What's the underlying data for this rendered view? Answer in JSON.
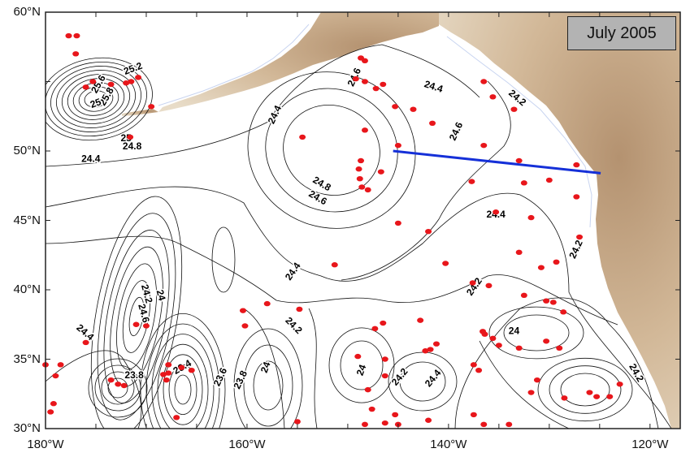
{
  "figure": {
    "date_label": "July 2005"
  },
  "axes": {
    "lon_range": [
      -180,
      -117
    ],
    "lat_range": [
      30,
      60
    ],
    "lat_ticks": [
      {
        "value": 60,
        "label": "60°N"
      },
      {
        "value": 50,
        "label": "50°N"
      },
      {
        "value": 45,
        "label": "45°N"
      },
      {
        "value": 40,
        "label": "40°N"
      },
      {
        "value": 35,
        "label": "35°N"
      },
      {
        "value": 30,
        "label": "30°N"
      }
    ],
    "lon_ticks": [
      {
        "value": -180,
        "label": "180°W"
      },
      {
        "value": -160,
        "label": "160°W"
      },
      {
        "value": -140,
        "label": "140°W"
      },
      {
        "value": -120,
        "label": "120°W"
      }
    ]
  },
  "colors": {
    "land_low": "#e8dcc8",
    "land_mid": "#d2b898",
    "land_high": "#b49270",
    "contour": "#111111",
    "float": "#e8161b",
    "section_line": "#1530d8",
    "coast_shelf": "#c8d4f0"
  },
  "contour_labels": [
    {
      "text": "24.6",
      "lon": -149.3,
      "lat": 55.3,
      "rot": -65
    },
    {
      "text": "24.4",
      "lon": -141.5,
      "lat": 54.6,
      "rot": 18
    },
    {
      "text": "24.2",
      "lon": -133.2,
      "lat": 53.8,
      "rot": 40
    },
    {
      "text": "24.4",
      "lon": -157.2,
      "lat": 52.6,
      "rot": -65
    },
    {
      "text": "24.6",
      "lon": -139.2,
      "lat": 51.4,
      "rot": -65
    },
    {
      "text": "24.8",
      "lon": -152.6,
      "lat": 47.6,
      "rot": 30
    },
    {
      "text": "24.6",
      "lon": -153.0,
      "lat": 46.6,
      "rot": 30
    },
    {
      "text": "24.4",
      "lon": -135.3,
      "lat": 45.4,
      "rot": 0
    },
    {
      "text": "24.2",
      "lon": -127.3,
      "lat": 42.9,
      "rot": -65
    },
    {
      "text": "24.4",
      "lon": -155.4,
      "lat": 41.3,
      "rot": -55
    },
    {
      "text": "24.2",
      "lon": -137.4,
      "lat": 40.2,
      "rot": -55
    },
    {
      "text": "24.2",
      "lon": -155.4,
      "lat": 37.4,
      "rot": 45
    },
    {
      "text": "24",
      "lon": -133.5,
      "lat": 37.0,
      "rot": 0
    },
    {
      "text": "24.2",
      "lon": -121.4,
      "lat": 34.0,
      "rot": 60
    },
    {
      "text": "24",
      "lon": -148.6,
      "lat": 34.2,
      "rot": -70
    },
    {
      "text": "24.2",
      "lon": -144.8,
      "lat": 33.7,
      "rot": -50
    },
    {
      "text": "24.4",
      "lon": -141.5,
      "lat": 33.6,
      "rot": -50
    },
    {
      "text": "24",
      "lon": -158.1,
      "lat": 34.4,
      "rot": -70
    },
    {
      "text": "23.8",
      "lon": -160.6,
      "lat": 33.5,
      "rot": -65
    },
    {
      "text": "23.6",
      "lon": -162.6,
      "lat": 33.7,
      "rot": -65
    },
    {
      "text": "23.8",
      "lon": -171.2,
      "lat": 33.8,
      "rot": 0
    },
    {
      "text": "23.4",
      "lon": -166.4,
      "lat": 34.4,
      "rot": -30
    },
    {
      "text": "24.4",
      "lon": -176.1,
      "lat": 36.9,
      "rot": 40
    },
    {
      "text": "24.6",
      "lon": -170.3,
      "lat": 38.3,
      "rot": 75
    },
    {
      "text": "24.2",
      "lon": -170.0,
      "lat": 39.7,
      "rot": 75
    },
    {
      "text": "24",
      "lon": -168.6,
      "lat": 39.6,
      "rot": 75
    },
    {
      "text": "24.4",
      "lon": -175.5,
      "lat": 49.4,
      "rot": 0
    },
    {
      "text": "24.8",
      "lon": -171.4,
      "lat": 50.3,
      "rot": 0
    },
    {
      "text": "25",
      "lon": -172.0,
      "lat": 50.9,
      "rot": 0
    },
    {
      "text": "25.6",
      "lon": -174.7,
      "lat": 54.8,
      "rot": -60
    },
    {
      "text": "25.8",
      "lon": -173.9,
      "lat": 53.9,
      "rot": -60
    },
    {
      "text": "25.2",
      "lon": -171.3,
      "lat": 55.9,
      "rot": -20
    },
    {
      "text": "25",
      "lon": -175.0,
      "lat": 53.4,
      "rot": -20
    }
  ],
  "section_line": [
    [
      -145.5,
      50.0
    ],
    [
      -124.9,
      48.4
    ]
  ],
  "float_positions": [
    [
      -177.7,
      58.3
    ],
    [
      -176.9,
      58.3
    ],
    [
      -177.0,
      57.0
    ],
    [
      -173.5,
      54.8
    ],
    [
      -172.0,
      54.9
    ],
    [
      -171.5,
      55.0
    ],
    [
      -170.8,
      55.3
    ],
    [
      -169.5,
      53.2
    ],
    [
      -171.6,
      51.0
    ],
    [
      -176.0,
      54.6
    ],
    [
      -175.3,
      55.0
    ],
    [
      -154.5,
      51.0
    ],
    [
      -148.7,
      56.7
    ],
    [
      -148.3,
      56.5
    ],
    [
      -149.2,
      55.2
    ],
    [
      -148.3,
      55.0
    ],
    [
      -147.2,
      54.5
    ],
    [
      -146.5,
      54.8
    ],
    [
      -145.3,
      53.2
    ],
    [
      -143.5,
      53.0
    ],
    [
      -141.6,
      52.0
    ],
    [
      -148.3,
      51.5
    ],
    [
      -145.0,
      50.4
    ],
    [
      -148.7,
      49.3
    ],
    [
      -148.9,
      48.7
    ],
    [
      -146.7,
      48.5
    ],
    [
      -148.8,
      48.0
    ],
    [
      -148.6,
      47.4
    ],
    [
      -148.0,
      47.2
    ],
    [
      -136.5,
      55.0
    ],
    [
      -135.6,
      53.9
    ],
    [
      -133.5,
      53.0
    ],
    [
      -136.5,
      50.4
    ],
    [
      -133.0,
      49.3
    ],
    [
      -132.5,
      47.7
    ],
    [
      -130.0,
      47.9
    ],
    [
      -127.3,
      49.0
    ],
    [
      -127.3,
      46.7
    ],
    [
      -137.7,
      47.8
    ],
    [
      -135.3,
      45.6
    ],
    [
      -131.8,
      45.2
    ],
    [
      -145.0,
      44.8
    ],
    [
      -142.0,
      44.2
    ],
    [
      -127.0,
      43.8
    ],
    [
      -133.0,
      42.7
    ],
    [
      -129.3,
      42.0
    ],
    [
      -130.8,
      41.6
    ],
    [
      -151.3,
      41.8
    ],
    [
      -140.3,
      41.9
    ],
    [
      -137.6,
      40.5
    ],
    [
      -136.0,
      40.3
    ],
    [
      -132.5,
      39.6
    ],
    [
      -130.3,
      39.2
    ],
    [
      -129.6,
      39.1
    ],
    [
      -128.6,
      38.4
    ],
    [
      -154.8,
      38.6
    ],
    [
      -158.0,
      39.0
    ],
    [
      -160.4,
      38.5
    ],
    [
      -160.2,
      37.4
    ],
    [
      -146.5,
      37.6
    ],
    [
      -142.8,
      37.8
    ],
    [
      -147.3,
      37.2
    ],
    [
      -141.2,
      36.1
    ],
    [
      -142.3,
      35.6
    ],
    [
      -141.8,
      35.7
    ],
    [
      -136.6,
      37.0
    ],
    [
      -136.4,
      36.8
    ],
    [
      -135.6,
      36.5
    ],
    [
      -135.0,
      36.0
    ],
    [
      -133.0,
      35.8
    ],
    [
      -130.3,
      36.3
    ],
    [
      -129.0,
      35.8
    ],
    [
      -137.5,
      34.6
    ],
    [
      -137.0,
      34.2
    ],
    [
      -131.2,
      33.5
    ],
    [
      -131.8,
      32.6
    ],
    [
      -126.0,
      32.6
    ],
    [
      -124.0,
      32.3
    ],
    [
      -125.3,
      32.3
    ],
    [
      -123.0,
      33.2
    ],
    [
      -128.5,
      32.2
    ],
    [
      -137.5,
      31.0
    ],
    [
      -136.5,
      30.3
    ],
    [
      -134.0,
      30.3
    ],
    [
      -145.3,
      31.0
    ],
    [
      -146.3,
      30.4
    ],
    [
      -148.3,
      30.3
    ],
    [
      -145.0,
      30.3
    ],
    [
      -142.0,
      30.6
    ],
    [
      -146.3,
      33.8
    ],
    [
      -148.0,
      32.8
    ],
    [
      -147.6,
      31.4
    ],
    [
      -149.0,
      35.2
    ],
    [
      -146.3,
      35.0
    ],
    [
      -171.0,
      37.5
    ],
    [
      -170.0,
      37.4
    ],
    [
      -176.0,
      36.2
    ],
    [
      -180.0,
      34.6
    ],
    [
      -179.0,
      33.8
    ],
    [
      -178.5,
      34.6
    ],
    [
      -179.5,
      31.2
    ],
    [
      -179.2,
      31.8
    ],
    [
      -173.5,
      33.5
    ],
    [
      -172.8,
      33.2
    ],
    [
      -172.2,
      33.1
    ],
    [
      -167.8,
      34.6
    ],
    [
      -167.8,
      34.0
    ],
    [
      -168.0,
      33.5
    ],
    [
      -166.5,
      34.4
    ],
    [
      -165.5,
      34.2
    ],
    [
      -168.3,
      33.9
    ],
    [
      -167.0,
      30.8
    ],
    [
      -155.0,
      30.5
    ]
  ]
}
